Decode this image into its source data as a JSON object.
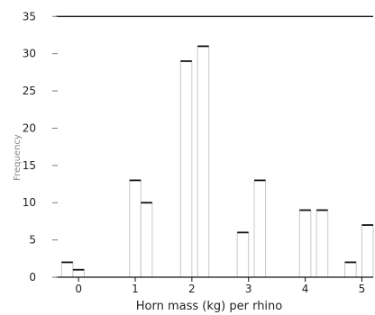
{
  "chart_data": {
    "type": "bar",
    "title": "",
    "xlabel": "Horn mass (kg) per rhino",
    "ylabel": "Frequency",
    "xlim": [
      -0.4,
      5.2
    ],
    "ylim": [
      0,
      36
    ],
    "x_ticks": [
      "0",
      "1",
      "2",
      "3",
      "4",
      "5"
    ],
    "y_ticks": [
      "0",
      "5",
      "10",
      "15",
      "20",
      "25",
      "30",
      "35"
    ],
    "bar_width": 0.2,
    "x": [
      -0.3,
      -0.1,
      0.9,
      1.1,
      1.8,
      2.1,
      2.8,
      3.1,
      3.9,
      4.2,
      4.7,
      5.0
    ],
    "values": [
      2,
      1,
      13,
      10,
      29,
      31,
      6,
      13,
      9,
      9,
      2,
      7
    ],
    "reference_line": 35,
    "grid": false,
    "colors": {
      "bar_top": "#111111",
      "bar_side": "#c8c8c8",
      "axis": "#111111"
    }
  }
}
